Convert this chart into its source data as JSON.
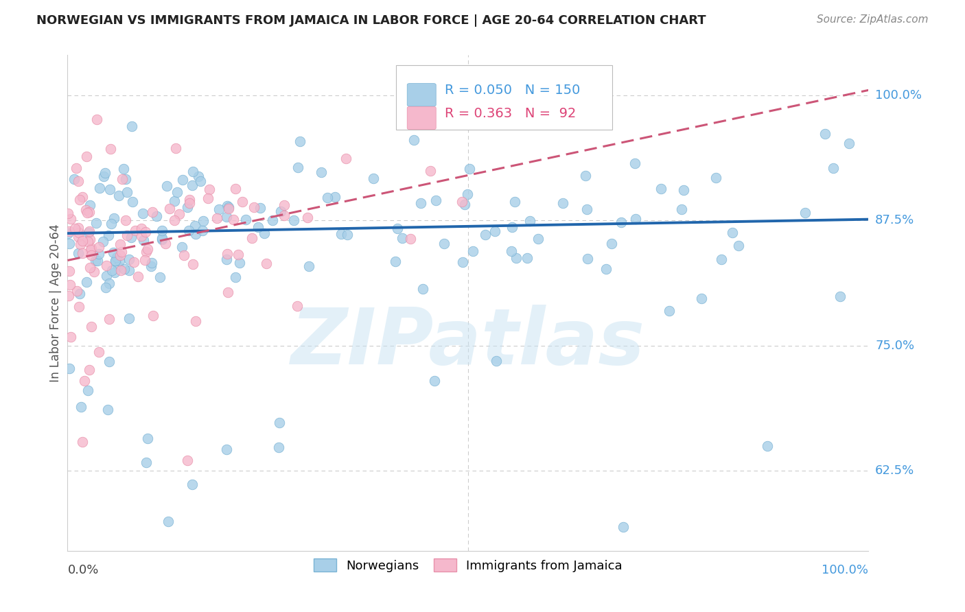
{
  "title": "NORWEGIAN VS IMMIGRANTS FROM JAMAICA IN LABOR FORCE | AGE 20-64 CORRELATION CHART",
  "source": "Source: ZipAtlas.com",
  "ylabel": "In Labor Force | Age 20-64",
  "ylabel_ticks": [
    0.625,
    0.75,
    0.875,
    1.0
  ],
  "ylabel_tick_labels": [
    "62.5%",
    "75.0%",
    "87.5%",
    "100.0%"
  ],
  "xlim": [
    0.0,
    1.0
  ],
  "ylim": [
    0.545,
    1.04
  ],
  "blue_R": 0.05,
  "blue_N": 150,
  "pink_R": 0.363,
  "pink_N": 92,
  "blue_scatter_color": "#a8cfe8",
  "blue_scatter_edge": "#7ab3d4",
  "pink_scatter_color": "#f5b8cc",
  "pink_scatter_edge": "#e890aa",
  "blue_line_color": "#2166ac",
  "pink_line_color": "#cc5577",
  "legend_color_blue": "#4499dd",
  "legend_color_pink": "#dd4477",
  "legend_label_blue": "Norwegians",
  "legend_label_pink": "Immigrants from Jamaica",
  "watermark": "ZIPatlas",
  "background_color": "#ffffff",
  "grid_color": "#cccccc",
  "ytick_color": "#4499dd",
  "title_fontsize": 13,
  "source_fontsize": 11
}
